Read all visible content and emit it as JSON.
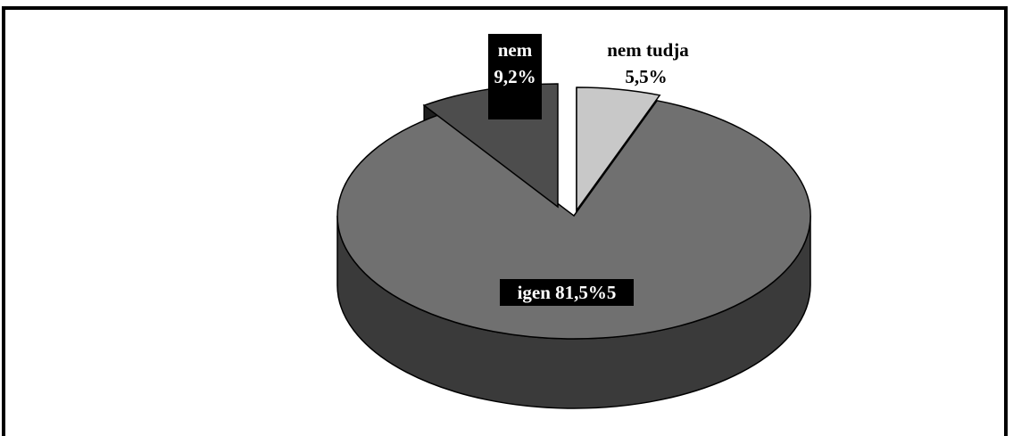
{
  "chart_data": {
    "type": "pie",
    "style": "3d-exploded",
    "title": "",
    "slices": [
      {
        "label": "igen 81,5%5",
        "value": 81.5,
        "color": "#707070",
        "side_color": "#3a3a3a"
      },
      {
        "label_lines": [
          "nem",
          "9,2%"
        ],
        "value": 9.2,
        "color": "#4d4d4d",
        "side_color": "#1e1e1e"
      },
      {
        "label_lines": [
          "nem tudja",
          "5,5%"
        ],
        "value": 5.5,
        "color": "#c8c8c8",
        "side_color": "#6e6e6e"
      }
    ],
    "legend": "none"
  }
}
